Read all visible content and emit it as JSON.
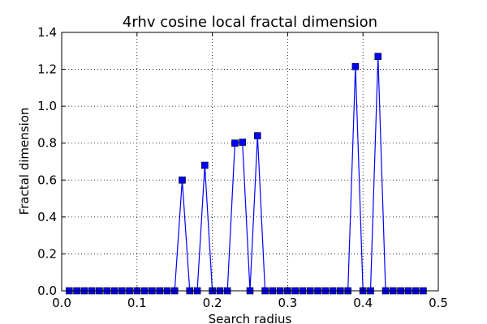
{
  "chart_data": {
    "type": "line",
    "title": "4rhv cosine local fractal dimension",
    "xlabel": "Search radius",
    "ylabel": "Fractal dimension",
    "xlim": [
      0.0,
      0.5
    ],
    "ylim": [
      0.0,
      1.4
    ],
    "xticks": [
      0.0,
      0.1,
      0.2,
      0.3,
      0.4,
      0.5
    ],
    "xtick_labels": [
      "0.0",
      "0.1",
      "0.2",
      "0.3",
      "0.4",
      "0.5"
    ],
    "yticks": [
      0.0,
      0.2,
      0.4,
      0.6,
      0.8,
      1.0,
      1.2,
      1.4
    ],
    "ytick_labels": [
      "0.0",
      "0.2",
      "0.4",
      "0.6",
      "0.8",
      "1.0",
      "1.2",
      "1.4"
    ],
    "grid": true,
    "grid_style": "dotted",
    "legend": "none",
    "series": [
      {
        "color": "#0000ff",
        "marker": "square",
        "x": [
          0.01,
          0.02,
          0.03,
          0.04,
          0.05,
          0.06,
          0.07,
          0.08,
          0.09,
          0.1,
          0.11,
          0.12,
          0.13,
          0.14,
          0.15,
          0.16,
          0.17,
          0.18,
          0.19,
          0.2,
          0.21,
          0.22,
          0.23,
          0.24,
          0.25,
          0.26,
          0.27,
          0.28,
          0.29,
          0.3,
          0.31,
          0.32,
          0.33,
          0.34,
          0.35,
          0.36,
          0.37,
          0.38,
          0.39,
          0.4,
          0.41,
          0.42,
          0.43,
          0.44,
          0.45,
          0.46,
          0.47,
          0.48
        ],
        "y": [
          0,
          0,
          0,
          0,
          0,
          0,
          0,
          0,
          0,
          0,
          0,
          0,
          0,
          0,
          0,
          0.6,
          0,
          0,
          0.68,
          0,
          0,
          0,
          0.8,
          0.805,
          0,
          0.84,
          0,
          0,
          0,
          0,
          0,
          0,
          0,
          0,
          0,
          0,
          0,
          0,
          1.215,
          0,
          0,
          1.27,
          0,
          0,
          0,
          0,
          0,
          0
        ]
      }
    ]
  }
}
